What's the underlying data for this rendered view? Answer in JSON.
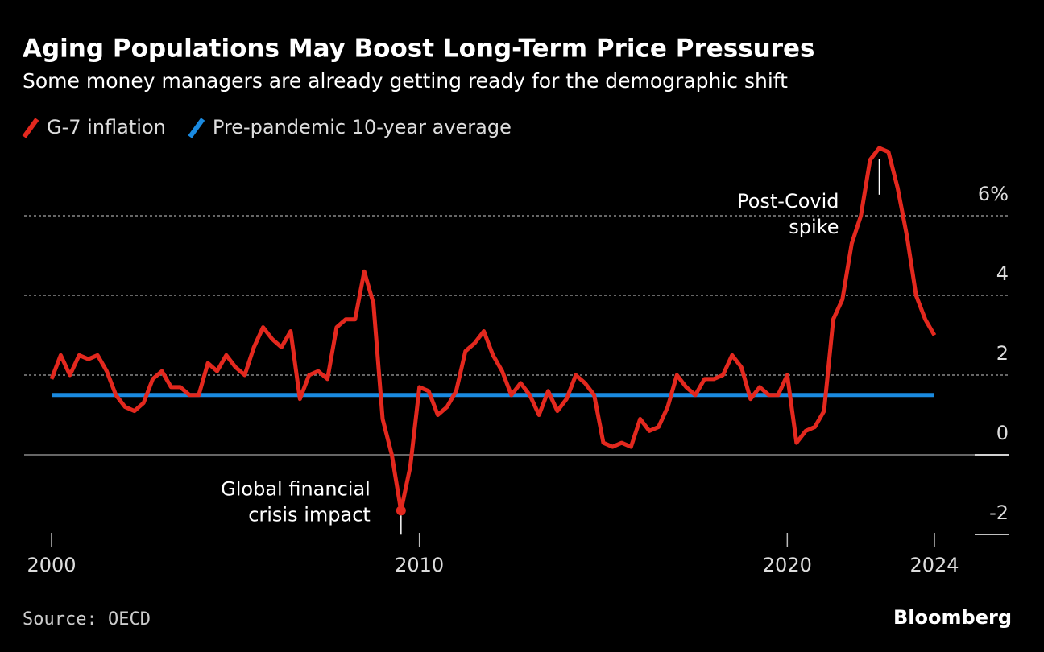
{
  "chart_data": {
    "type": "line",
    "title": "Aging Populations May Boost Long-Term Price Pressures",
    "subtitle": "Some money managers are already getting ready for the demographic shift",
    "source": "Source: OECD",
    "brand": "Bloomberg",
    "xlim": [
      2000,
      2024
    ],
    "xticks": [
      2000,
      2010,
      2020,
      2024
    ],
    "ylim": [
      -2,
      8
    ],
    "yticks": [
      {
        "value": 6,
        "label": "6%"
      },
      4,
      2,
      0,
      -2
    ],
    "grid": true,
    "series": [
      {
        "name": "G-7 inflation",
        "color": "#e3281e",
        "x": [
          2000,
          2000.25,
          2000.5,
          2000.75,
          2001,
          2001.25,
          2001.5,
          2001.75,
          2002,
          2002.25,
          2002.5,
          2002.75,
          2003,
          2003.25,
          2003.5,
          2003.75,
          2004,
          2004.25,
          2004.5,
          2004.75,
          2005,
          2005.25,
          2005.5,
          2005.75,
          2006,
          2006.25,
          2006.5,
          2006.75,
          2007,
          2007.25,
          2007.5,
          2007.75,
          2008,
          2008.25,
          2008.5,
          2008.75,
          2009,
          2009.25,
          2009.5,
          2009.75,
          2010,
          2010.25,
          2010.5,
          2010.75,
          2011,
          2011.25,
          2011.5,
          2011.75,
          2012,
          2012.25,
          2012.5,
          2012.75,
          2013,
          2013.25,
          2013.5,
          2013.75,
          2014,
          2014.25,
          2014.5,
          2014.75,
          2015,
          2015.25,
          2015.5,
          2015.75,
          2016,
          2016.25,
          2016.5,
          2016.75,
          2017,
          2017.25,
          2017.5,
          2017.75,
          2018,
          2018.25,
          2018.5,
          2018.75,
          2019,
          2019.25,
          2019.5,
          2019.75,
          2020,
          2020.25,
          2020.5,
          2020.75,
          2021,
          2021.25,
          2021.5,
          2021.75,
          2022,
          2022.25,
          2022.5,
          2022.75,
          2023,
          2023.25,
          2023.5,
          2023.75,
          2024
        ],
        "values": [
          1.9,
          2.5,
          2.0,
          2.5,
          2.4,
          2.5,
          2.1,
          1.5,
          1.2,
          1.1,
          1.3,
          1.9,
          2.1,
          1.7,
          1.7,
          1.5,
          1.5,
          2.3,
          2.1,
          2.5,
          2.2,
          2.0,
          2.7,
          3.2,
          2.9,
          2.7,
          3.1,
          1.4,
          2.0,
          2.1,
          1.9,
          3.2,
          3.4,
          3.4,
          4.6,
          3.8,
          0.9,
          0.0,
          -1.4,
          -0.3,
          1.7,
          1.6,
          1.0,
          1.2,
          1.6,
          2.6,
          2.8,
          3.1,
          2.5,
          2.1,
          1.5,
          1.8,
          1.5,
          1.0,
          1.6,
          1.1,
          1.4,
          2.0,
          1.8,
          1.5,
          0.3,
          0.2,
          0.3,
          0.2,
          0.9,
          0.6,
          0.7,
          1.2,
          2.0,
          1.7,
          1.5,
          1.9,
          1.9,
          2.0,
          2.5,
          2.2,
          1.4,
          1.7,
          1.5,
          1.5,
          2.0,
          0.3,
          0.6,
          0.7,
          1.1,
          3.4,
          3.9,
          5.3,
          6.0,
          7.4,
          7.7,
          7.6,
          6.7,
          5.5,
          4.0,
          3.4,
          3.0
        ]
      },
      {
        "name": "Pre-pandemic 10-year average",
        "color": "#1a8ae0",
        "x": [
          2000,
          2024
        ],
        "values": [
          1.5,
          1.5
        ]
      }
    ],
    "annotations": [
      {
        "text": [
          "Post-Covid",
          "spike"
        ],
        "x": 2022.5,
        "y": 7.7
      },
      {
        "text": [
          "Global financial",
          "crisis impact"
        ],
        "x": 2009.5,
        "y": -1.4
      }
    ]
  }
}
